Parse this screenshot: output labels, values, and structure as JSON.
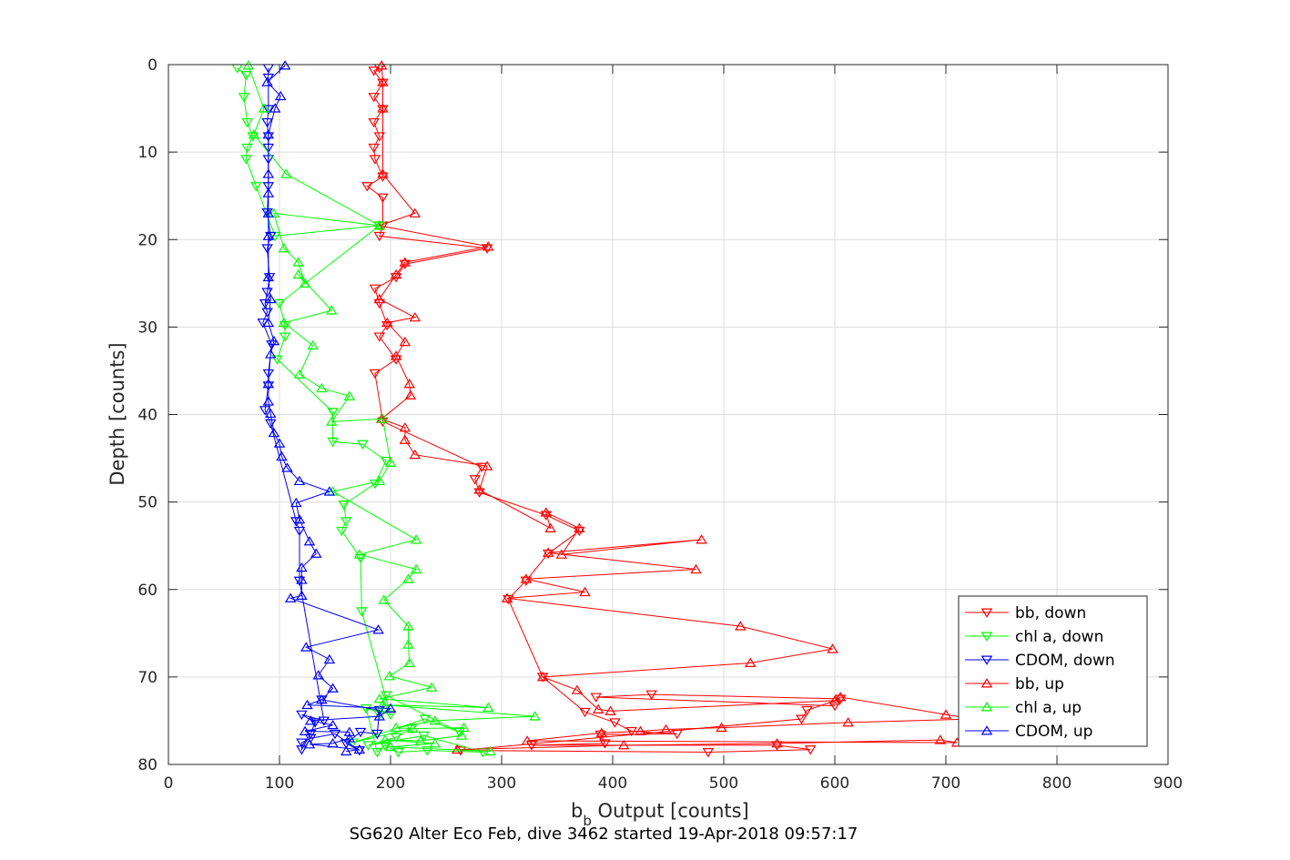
{
  "chart_data": {
    "type": "line",
    "xlabel_main": "b",
    "xlabel_sub": "b",
    "xlabel_rest": " Output [counts]",
    "ylabel": "Depth [counts]",
    "caption": "SG620 Alter Eco Feb, dive 3462 started 19-Apr-2018 09:57:17",
    "xlim": [
      0,
      900
    ],
    "ylim": [
      0,
      80
    ],
    "y_reversed": true,
    "xticks": [
      0,
      100,
      200,
      300,
      400,
      500,
      600,
      700,
      800,
      900
    ],
    "yticks": [
      0,
      10,
      20,
      30,
      40,
      50,
      60,
      70,
      80
    ],
    "grid": true,
    "legend_position": "bottom-right",
    "series": [
      {
        "name": "bb, down",
        "color": "#ff0000",
        "marker": "triangle-down",
        "points": [
          [
            190,
            0.4
          ],
          [
            185,
            0.7
          ],
          [
            193,
            2.1
          ],
          [
            185,
            3.7
          ],
          [
            193,
            5.1
          ],
          [
            185,
            6.6
          ],
          [
            190,
            8.2
          ],
          [
            185,
            9.5
          ],
          [
            186,
            10.8
          ],
          [
            193,
            12.8
          ],
          [
            179,
            13.9
          ],
          [
            193,
            15.2
          ],
          [
            193,
            18.4
          ],
          [
            190,
            19.6
          ],
          [
            287,
            21.0
          ],
          [
            213,
            22.8
          ],
          [
            205,
            24.3
          ],
          [
            186,
            25.6
          ],
          [
            190,
            27.3
          ],
          [
            197,
            29.8
          ],
          [
            190,
            31.1
          ],
          [
            205,
            33.7
          ],
          [
            186,
            35.3
          ],
          [
            193,
            40.8
          ],
          [
            282,
            46.0
          ],
          [
            276,
            47.4
          ],
          [
            280,
            48.9
          ],
          [
            340,
            51.5
          ],
          [
            370,
            53.3
          ],
          [
            342,
            55.9
          ],
          [
            322,
            59.0
          ],
          [
            306,
            61.1
          ],
          [
            337,
            70.0
          ],
          [
            375,
            74.0
          ],
          [
            402,
            75.2
          ],
          [
            417,
            76.2
          ],
          [
            458,
            76.5
          ],
          [
            389,
            76.6
          ],
          [
            393,
            77.6
          ],
          [
            327,
            77.8
          ],
          [
            548,
            77.8
          ],
          [
            578,
            78.3
          ],
          [
            486,
            78.6
          ],
          [
            263,
            78.4
          ],
          [
            570,
            74.8
          ],
          [
            575,
            73.8
          ],
          [
            605,
            72.5
          ],
          [
            435,
            72.0
          ],
          [
            385,
            72.3
          ],
          [
            600,
            73.3
          ]
        ]
      },
      {
        "name": "chl a, down",
        "color": "#00ff00",
        "marker": "triangle-down",
        "points": [
          [
            62,
            0.4
          ],
          [
            70,
            1.2
          ],
          [
            68,
            3.7
          ],
          [
            71,
            6.6
          ],
          [
            76,
            8.2
          ],
          [
            71,
            9.5
          ],
          [
            70,
            10.8
          ],
          [
            79,
            13.9
          ],
          [
            96,
            19.6
          ],
          [
            190,
            18.4
          ],
          [
            100,
            27.3
          ],
          [
            105,
            29.8
          ],
          [
            105,
            31.1
          ],
          [
            98,
            33.7
          ],
          [
            148,
            39.7
          ],
          [
            148,
            43.1
          ],
          [
            175,
            43.4
          ],
          [
            196,
            45.3
          ],
          [
            186,
            47.9
          ],
          [
            158,
            50.3
          ],
          [
            160,
            52.2
          ],
          [
            156,
            53.3
          ],
          [
            173,
            56.4
          ],
          [
            174,
            62.5
          ],
          [
            200,
            74.3
          ],
          [
            178,
            73.6
          ],
          [
            188,
            78.6
          ],
          [
            195,
            77.8
          ],
          [
            207,
            78.6
          ],
          [
            233,
            78.4
          ],
          [
            283,
            78.6
          ],
          [
            230,
            76.7
          ],
          [
            180,
            77.8
          ],
          [
            205,
            76.9
          ],
          [
            219,
            75.9
          ],
          [
            166,
            77.5
          ],
          [
            231,
            74.8
          ],
          [
            262,
            76.3
          ],
          [
            196,
            72.1
          ],
          [
            190,
            74.3
          ]
        ]
      },
      {
        "name": "CDOM, down",
        "color": "#0000ff",
        "marker": "triangle-down",
        "points": [
          [
            90,
            0.4
          ],
          [
            90,
            1.5
          ],
          [
            90,
            5.1
          ],
          [
            89,
            6.6
          ],
          [
            90,
            8.2
          ],
          [
            90,
            9.5
          ],
          [
            90,
            10.8
          ],
          [
            90,
            13.9
          ],
          [
            89,
            16.9
          ],
          [
            92,
            19.6
          ],
          [
            89,
            21.0
          ],
          [
            91,
            24.3
          ],
          [
            89,
            26.0
          ],
          [
            87,
            27.3
          ],
          [
            89,
            28.3
          ],
          [
            85,
            29.5
          ],
          [
            93,
            32.0
          ],
          [
            90,
            35.3
          ],
          [
            90,
            36.7
          ],
          [
            87,
            39.5
          ],
          [
            92,
            41.0
          ],
          [
            115,
            52.2
          ],
          [
            118,
            53.3
          ],
          [
            118,
            59.0
          ],
          [
            140,
            75.0
          ],
          [
            120,
            74.3
          ],
          [
            132,
            75.2
          ],
          [
            128,
            76.5
          ],
          [
            120,
            78.3
          ],
          [
            120,
            77.5
          ],
          [
            128,
            77.0
          ],
          [
            150,
            76.5
          ],
          [
            172,
            78.4
          ],
          [
            160,
            77.6
          ],
          [
            173,
            76.3
          ],
          [
            188,
            76.5
          ],
          [
            190,
            73.8
          ],
          [
            138,
            72.6
          ]
        ]
      },
      {
        "name": "bb, up",
        "color": "#ff0000",
        "marker": "triangle-up",
        "points": [
          [
            192,
            0.1
          ],
          [
            193,
            2.0
          ],
          [
            193,
            5.0
          ],
          [
            193,
            12.5
          ],
          [
            222,
            17.0
          ],
          [
            190,
            18.4
          ],
          [
            288,
            20.8
          ],
          [
            213,
            22.6
          ],
          [
            205,
            24.0
          ],
          [
            190,
            26.8
          ],
          [
            222,
            28.9
          ],
          [
            197,
            29.5
          ],
          [
            213,
            31.7
          ],
          [
            205,
            33.3
          ],
          [
            217,
            36.5
          ],
          [
            218,
            37.8
          ],
          [
            192,
            40.5
          ],
          [
            213,
            41.5
          ],
          [
            213,
            42.9
          ],
          [
            222,
            44.6
          ],
          [
            287,
            45.9
          ],
          [
            280,
            48.6
          ],
          [
            344,
            53.0
          ],
          [
            340,
            51.2
          ],
          [
            370,
            53.0
          ],
          [
            354,
            56.0
          ],
          [
            480,
            54.3
          ],
          [
            342,
            55.8
          ],
          [
            475,
            57.7
          ],
          [
            322,
            58.8
          ],
          [
            375,
            60.3
          ],
          [
            305,
            61.0
          ],
          [
            515,
            64.2
          ],
          [
            598,
            66.8
          ],
          [
            524,
            68.4
          ],
          [
            337,
            70.0
          ],
          [
            368,
            71.5
          ],
          [
            387,
            73.7
          ],
          [
            398,
            73.9
          ],
          [
            600,
            72.7
          ],
          [
            605,
            72.3
          ],
          [
            700,
            74.3
          ],
          [
            725,
            74.8
          ],
          [
            612,
            75.2
          ],
          [
            498,
            75.8
          ],
          [
            448,
            76.0
          ],
          [
            425,
            76.2
          ],
          [
            390,
            76.4
          ],
          [
            323,
            77.3
          ],
          [
            710,
            77.5
          ],
          [
            695,
            77.2
          ],
          [
            548,
            77.6
          ],
          [
            410,
            77.8
          ],
          [
            260,
            78.3
          ]
        ]
      },
      {
        "name": "chl a, up",
        "color": "#00ff00",
        "marker": "triangle-up",
        "points": [
          [
            72,
            0.1
          ],
          [
            86,
            5.0
          ],
          [
            77,
            8.0
          ],
          [
            106,
            12.5
          ],
          [
            190,
            18.4
          ],
          [
            95,
            17.0
          ],
          [
            104,
            21.0
          ],
          [
            117,
            22.6
          ],
          [
            123,
            25.0
          ],
          [
            117,
            24.0
          ],
          [
            147,
            28.1
          ],
          [
            104,
            29.5
          ],
          [
            130,
            32.1
          ],
          [
            118,
            35.4
          ],
          [
            138,
            37.0
          ],
          [
            163,
            37.9
          ],
          [
            147,
            40.8
          ],
          [
            193,
            40.5
          ],
          [
            200,
            45.5
          ],
          [
            190,
            47.6
          ],
          [
            148,
            48.8
          ],
          [
            223,
            54.3
          ],
          [
            172,
            56.0
          ],
          [
            223,
            57.7
          ],
          [
            216,
            58.8
          ],
          [
            194,
            61.2
          ],
          [
            216,
            64.2
          ],
          [
            216,
            66.3
          ],
          [
            217,
            68.4
          ],
          [
            199,
            69.9
          ],
          [
            237,
            71.2
          ],
          [
            190,
            72.5
          ],
          [
            288,
            73.5
          ],
          [
            193,
            73.2
          ],
          [
            330,
            74.5
          ],
          [
            240,
            75.0
          ],
          [
            205,
            75.8
          ],
          [
            220,
            75.9
          ],
          [
            266,
            75.8
          ],
          [
            264,
            76.7
          ],
          [
            227,
            77.3
          ],
          [
            195,
            77.2
          ],
          [
            240,
            77.6
          ],
          [
            200,
            78.0
          ],
          [
            290,
            78.5
          ]
        ]
      },
      {
        "name": "CDOM, up",
        "color": "#0000ff",
        "marker": "triangle-up",
        "points": [
          [
            105,
            0.1
          ],
          [
            89,
            2.0
          ],
          [
            101,
            3.6
          ],
          [
            96,
            5.0
          ],
          [
            90,
            8.0
          ],
          [
            90,
            12.5
          ],
          [
            90,
            14.7
          ],
          [
            90,
            17.0
          ],
          [
            90,
            19.6
          ],
          [
            90,
            24.3
          ],
          [
            92,
            26.8
          ],
          [
            90,
            29.5
          ],
          [
            95,
            31.6
          ],
          [
            92,
            33.1
          ],
          [
            90,
            36.5
          ],
          [
            90,
            38.5
          ],
          [
            92,
            39.9
          ],
          [
            95,
            42.1
          ],
          [
            100,
            43.3
          ],
          [
            102,
            44.8
          ],
          [
            107,
            46.1
          ],
          [
            118,
            47.6
          ],
          [
            145,
            48.8
          ],
          [
            115,
            50.1
          ],
          [
            118,
            52.0
          ],
          [
            127,
            54.5
          ],
          [
            133,
            55.9
          ],
          [
            120,
            57.5
          ],
          [
            120,
            58.9
          ],
          [
            120,
            60.7
          ],
          [
            110,
            61.0
          ],
          [
            189,
            64.6
          ],
          [
            124,
            66.6
          ],
          [
            145,
            68.0
          ],
          [
            135,
            69.8
          ],
          [
            148,
            71.3
          ],
          [
            138,
            72.6
          ],
          [
            125,
            73.2
          ],
          [
            200,
            73.6
          ],
          [
            190,
            74.5
          ],
          [
            128,
            75.0
          ],
          [
            148,
            75.5
          ],
          [
            123,
            76.2
          ],
          [
            163,
            76.3
          ],
          [
            163,
            77.0
          ],
          [
            148,
            77.6
          ],
          [
            127,
            77.7
          ],
          [
            172,
            78.3
          ],
          [
            160,
            78.5
          ]
        ]
      }
    ]
  }
}
